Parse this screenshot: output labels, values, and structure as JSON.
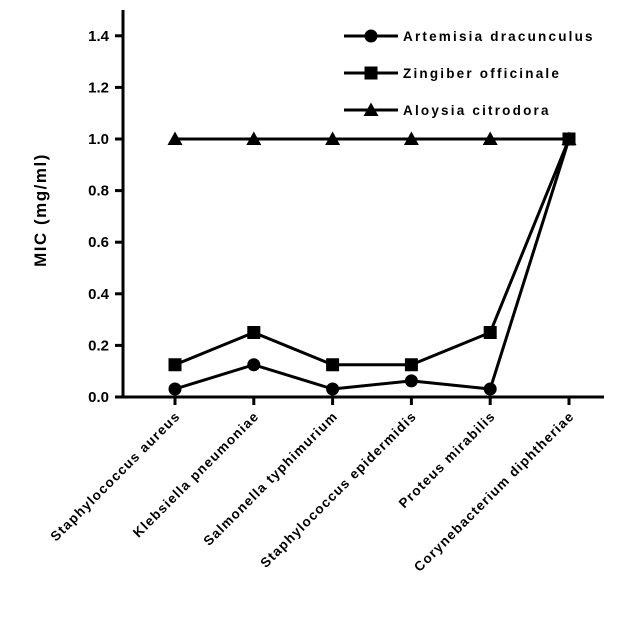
{
  "chart_data": {
    "type": "line",
    "title": "",
    "xlabel": "",
    "ylabel": "MIC (mg/ml)",
    "ylim": [
      0,
      1.5
    ],
    "yticks": [
      "0.0",
      "0.2",
      "0.4",
      "0.6",
      "0.8",
      "1.0",
      "1.2",
      "1.4"
    ],
    "categories": [
      "Staphylococcus aureus",
      "Klebsiella pneumoniae",
      "Salmonella typhimurium",
      "Staphylococcus epidermidis",
      "Proteus mirabilis",
      "Corynebacterium diphtheriae"
    ],
    "series": [
      {
        "name": "Artemisia dracunculus",
        "marker": "circle",
        "values": [
          0.031,
          0.125,
          0.031,
          0.0625,
          0.031,
          1.0
        ]
      },
      {
        "name": "Zingiber officinale",
        "marker": "square",
        "values": [
          0.125,
          0.25,
          0.125,
          0.125,
          0.25,
          1.0
        ]
      },
      {
        "name": "Aloysia citrodora",
        "marker": "triangle",
        "values": [
          1.0,
          1.0,
          1.0,
          1.0,
          1.0,
          1.0
        ]
      }
    ],
    "legend": "top-right",
    "grid": false,
    "line_color": "#000000"
  }
}
